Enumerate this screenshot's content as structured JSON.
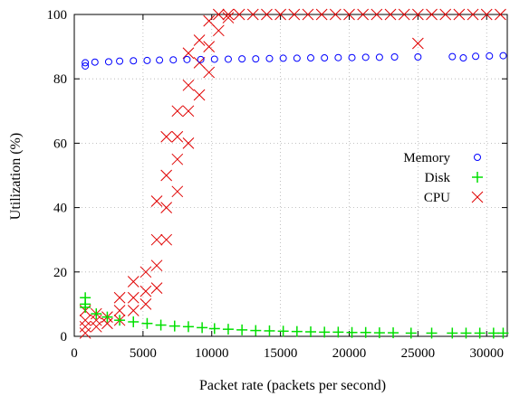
{
  "chart_data": {
    "type": "scatter",
    "title": "",
    "xlabel": "Packet rate (packets per second)",
    "ylabel": "Utilization (%)",
    "xlim": [
      0,
      31500
    ],
    "ylim": [
      0,
      100
    ],
    "xticks": [
      0,
      5000,
      10000,
      15000,
      20000,
      25000,
      30000
    ],
    "yticks": [
      0,
      20,
      40,
      60,
      80,
      100
    ],
    "grid": true,
    "legend_position": "right",
    "series": [
      {
        "name": "Memory",
        "marker": "circle",
        "color": "#0000ff",
        "points": [
          [
            800,
            84
          ],
          [
            800,
            85
          ],
          [
            1500,
            85.2
          ],
          [
            2500,
            85.3
          ],
          [
            3300,
            85.5
          ],
          [
            4300,
            85.6
          ],
          [
            5300,
            85.7
          ],
          [
            6200,
            85.8
          ],
          [
            7200,
            85.9
          ],
          [
            8200,
            86
          ],
          [
            9200,
            86
          ],
          [
            10200,
            86.1
          ],
          [
            11200,
            86.1
          ],
          [
            12200,
            86.2
          ],
          [
            13200,
            86.2
          ],
          [
            14200,
            86.3
          ],
          [
            15200,
            86.4
          ],
          [
            16200,
            86.4
          ],
          [
            17200,
            86.5
          ],
          [
            18200,
            86.5
          ],
          [
            19200,
            86.6
          ],
          [
            20200,
            86.6
          ],
          [
            21200,
            86.7
          ],
          [
            22200,
            86.7
          ],
          [
            23300,
            86.8
          ],
          [
            25000,
            86.8
          ],
          [
            27500,
            86.9
          ],
          [
            28300,
            86.5
          ],
          [
            29200,
            87
          ],
          [
            30200,
            87.1
          ],
          [
            31200,
            87.2
          ]
        ]
      },
      {
        "name": "Disk",
        "marker": "plus",
        "color": "#00e000",
        "points": [
          [
            800,
            12
          ],
          [
            800,
            10
          ],
          [
            800,
            9
          ],
          [
            1600,
            7
          ],
          [
            2400,
            6
          ],
          [
            3300,
            5
          ],
          [
            4300,
            4.5
          ],
          [
            5300,
            4
          ],
          [
            6300,
            3.5
          ],
          [
            7300,
            3.2
          ],
          [
            8300,
            3
          ],
          [
            9300,
            2.7
          ],
          [
            10200,
            2.4
          ],
          [
            11200,
            2.2
          ],
          [
            12200,
            2
          ],
          [
            13200,
            1.8
          ],
          [
            14200,
            1.7
          ],
          [
            15200,
            1.6
          ],
          [
            16200,
            1.5
          ],
          [
            17200,
            1.4
          ],
          [
            18200,
            1.3
          ],
          [
            19200,
            1.3
          ],
          [
            20200,
            1.2
          ],
          [
            21200,
            1.2
          ],
          [
            22200,
            1.1
          ],
          [
            23200,
            1.1
          ],
          [
            24500,
            1
          ],
          [
            26000,
            1
          ],
          [
            27500,
            1
          ],
          [
            28500,
            1
          ],
          [
            29500,
            1
          ],
          [
            30500,
            1
          ],
          [
            31200,
            1
          ]
        ]
      },
      {
        "name": "CPU",
        "marker": "cross",
        "color": "#e00000",
        "points": [
          [
            800,
            1
          ],
          [
            800,
            3
          ],
          [
            800,
            5
          ],
          [
            800,
            8
          ],
          [
            1600,
            3
          ],
          [
            1600,
            5
          ],
          [
            1600,
            7
          ],
          [
            2400,
            4
          ],
          [
            2400,
            6
          ],
          [
            3300,
            5
          ],
          [
            3300,
            8
          ],
          [
            3300,
            12
          ],
          [
            4300,
            8
          ],
          [
            4300,
            12
          ],
          [
            4300,
            17
          ],
          [
            5200,
            10
          ],
          [
            5200,
            14
          ],
          [
            5200,
            20
          ],
          [
            6000,
            15
          ],
          [
            6000,
            22
          ],
          [
            6000,
            30
          ],
          [
            6000,
            42
          ],
          [
            6700,
            30
          ],
          [
            6700,
            40
          ],
          [
            6700,
            50
          ],
          [
            6700,
            62
          ],
          [
            7500,
            45
          ],
          [
            7500,
            55
          ],
          [
            7500,
            62
          ],
          [
            7500,
            70
          ],
          [
            8300,
            60
          ],
          [
            8300,
            70
          ],
          [
            8300,
            78
          ],
          [
            8300,
            88
          ],
          [
            9100,
            75
          ],
          [
            9100,
            85
          ],
          [
            9100,
            92
          ],
          [
            9800,
            82
          ],
          [
            9800,
            90
          ],
          [
            9800,
            98
          ],
          [
            10500,
            95
          ],
          [
            10500,
            100
          ],
          [
            11200,
            99
          ],
          [
            11200,
            100
          ],
          [
            12000,
            100
          ],
          [
            13000,
            100
          ],
          [
            14000,
            100
          ],
          [
            15000,
            100
          ],
          [
            16000,
            100
          ],
          [
            17000,
            100
          ],
          [
            18000,
            100
          ],
          [
            19000,
            100
          ],
          [
            20000,
            100
          ],
          [
            21000,
            100
          ],
          [
            22000,
            100
          ],
          [
            23000,
            100
          ],
          [
            24000,
            100
          ],
          [
            25000,
            91
          ],
          [
            25000,
            100
          ],
          [
            26000,
            100
          ],
          [
            27000,
            100
          ],
          [
            28000,
            100
          ],
          [
            29000,
            100
          ],
          [
            30000,
            100
          ],
          [
            31000,
            100
          ]
        ]
      }
    ]
  }
}
